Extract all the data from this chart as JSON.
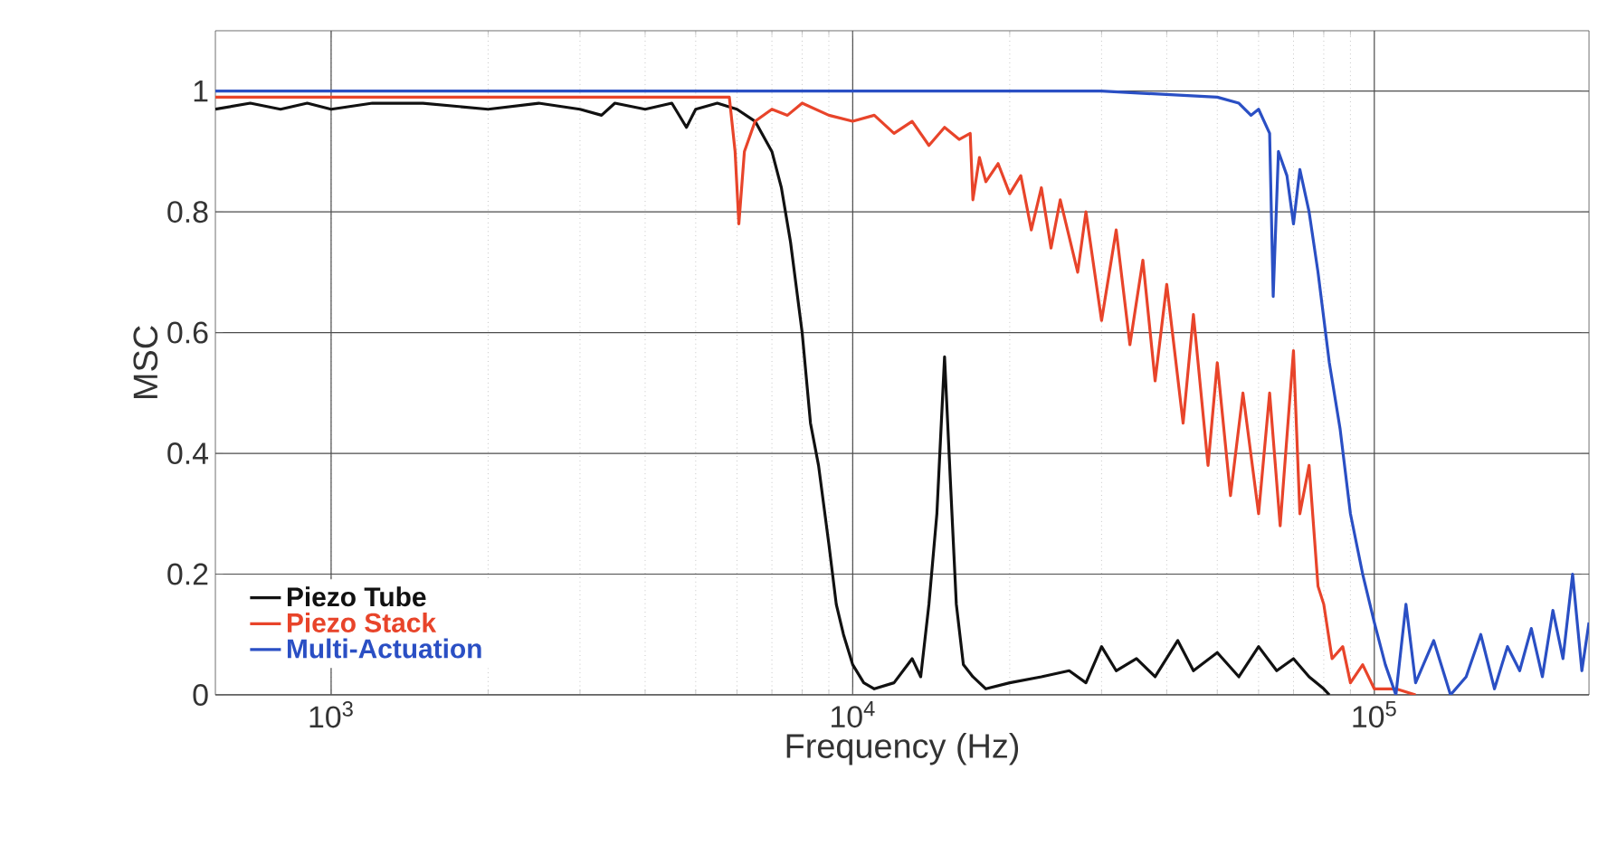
{
  "chart_data": {
    "type": "line",
    "xlabel": "Frequency (Hz)",
    "ylabel": "MSC",
    "log": "x",
    "grid": true,
    "legend": "bottom left",
    "marker": "none",
    "line_style": "solid",
    "xlim": [
      600,
      258000
    ],
    "ylim": [
      0,
      1.1
    ],
    "xticks": [
      {
        "value": 1000,
        "label": "10$^{3}$"
      },
      {
        "value": 10000,
        "label": "10$^{4}$"
      },
      {
        "value": 100000,
        "label": "10$^{5}$"
      }
    ],
    "yticks": [
      0,
      0.2,
      0.4,
      0.6,
      0.8,
      1
    ],
    "series": [
      {
        "name": "Piezo Tube",
        "color": "#111111",
        "x": [
          600,
          700,
          800,
          900,
          1000,
          1200,
          1500,
          2000,
          2500,
          3000,
          3300,
          3500,
          4000,
          4500,
          4800,
          5000,
          5500,
          6000,
          6500,
          7000,
          7300,
          7600,
          8000,
          8300,
          8600,
          9000,
          9300,
          9600,
          10000,
          10500,
          11000,
          12000,
          13000,
          13500,
          14000,
          14500,
          15000,
          15400,
          15800,
          16300,
          17000,
          18000,
          20000,
          23000,
          26000,
          28000,
          30000,
          32000,
          35000,
          38000,
          42000,
          45000,
          50000,
          55000,
          60000,
          65000,
          70000,
          75000,
          80000,
          82000
        ],
        "values": [
          0.97,
          0.98,
          0.97,
          0.98,
          0.97,
          0.98,
          0.98,
          0.97,
          0.98,
          0.97,
          0.96,
          0.98,
          0.97,
          0.98,
          0.94,
          0.97,
          0.98,
          0.97,
          0.95,
          0.9,
          0.84,
          0.75,
          0.6,
          0.45,
          0.38,
          0.25,
          0.15,
          0.1,
          0.05,
          0.02,
          0.01,
          0.02,
          0.06,
          0.03,
          0.15,
          0.3,
          0.56,
          0.35,
          0.15,
          0.05,
          0.03,
          0.01,
          0.02,
          0.03,
          0.04,
          0.02,
          0.08,
          0.04,
          0.06,
          0.03,
          0.09,
          0.04,
          0.07,
          0.03,
          0.08,
          0.04,
          0.06,
          0.03,
          0.01,
          0
        ]
      },
      {
        "name": "Piezo Stack",
        "color": "#e8442a",
        "x": [
          600,
          1000,
          2000,
          3000,
          5000,
          5800,
          5950,
          6050,
          6200,
          6500,
          7000,
          7500,
          8000,
          9000,
          10000,
          11000,
          12000,
          13000,
          14000,
          15000,
          16000,
          16800,
          17000,
          17500,
          18000,
          19000,
          20000,
          21000,
          22000,
          23000,
          24000,
          25000,
          27000,
          28000,
          30000,
          32000,
          34000,
          36000,
          38000,
          40000,
          43000,
          45000,
          48000,
          50000,
          53000,
          56000,
          60000,
          63000,
          66000,
          70000,
          72000,
          75000,
          78000,
          80000,
          83000,
          87000,
          90000,
          95000,
          100000,
          110000,
          120000
        ],
        "values": [
          0.99,
          0.99,
          0.99,
          0.99,
          0.99,
          0.99,
          0.9,
          0.78,
          0.9,
          0.95,
          0.97,
          0.96,
          0.98,
          0.96,
          0.95,
          0.96,
          0.93,
          0.95,
          0.91,
          0.94,
          0.92,
          0.93,
          0.82,
          0.89,
          0.85,
          0.88,
          0.83,
          0.86,
          0.77,
          0.84,
          0.74,
          0.82,
          0.7,
          0.8,
          0.62,
          0.77,
          0.58,
          0.72,
          0.52,
          0.68,
          0.45,
          0.63,
          0.38,
          0.55,
          0.33,
          0.5,
          0.3,
          0.5,
          0.28,
          0.57,
          0.3,
          0.38,
          0.18,
          0.15,
          0.06,
          0.08,
          0.02,
          0.05,
          0.01,
          0.01,
          0
        ]
      },
      {
        "name": "Multi-Actuation",
        "color": "#2a4fc4",
        "x": [
          600,
          10000,
          30000,
          50000,
          55000,
          58000,
          60000,
          63000,
          64000,
          65500,
          68000,
          70000,
          72000,
          75000,
          78000,
          82000,
          86000,
          90000,
          95000,
          100000,
          105000,
          110000,
          115000,
          120000,
          130000,
          140000,
          150000,
          160000,
          170000,
          180000,
          190000,
          200000,
          210000,
          220000,
          230000,
          240000,
          250000,
          258000
        ],
        "values": [
          1.0,
          1.0,
          1.0,
          0.99,
          0.98,
          0.96,
          0.97,
          0.93,
          0.66,
          0.9,
          0.86,
          0.78,
          0.87,
          0.8,
          0.7,
          0.55,
          0.44,
          0.3,
          0.2,
          0.12,
          0.05,
          0.0,
          0.15,
          0.02,
          0.09,
          0.0,
          0.03,
          0.1,
          0.01,
          0.08,
          0.04,
          0.11,
          0.03,
          0.14,
          0.06,
          0.2,
          0.04,
          0.12
        ]
      }
    ]
  }
}
